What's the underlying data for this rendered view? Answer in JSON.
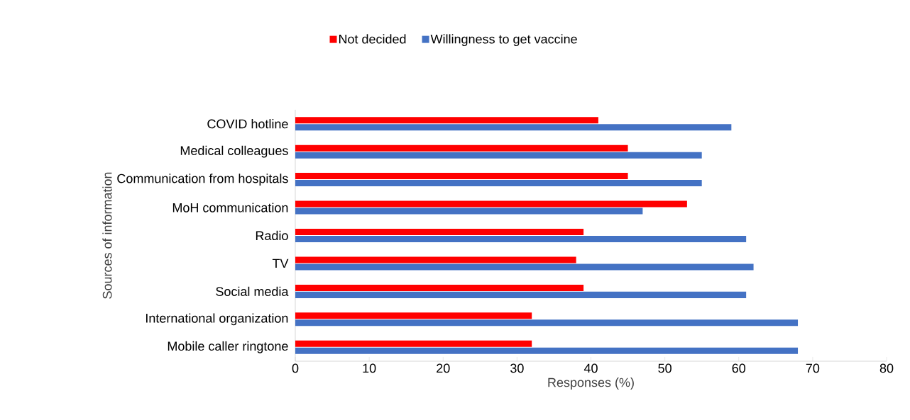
{
  "chart_data": {
    "type": "bar",
    "orientation": "horizontal",
    "xlabel": "Responses (%)",
    "ylabel": "Sources of information",
    "categories": [
      "COVID hotline",
      "Medical colleagues",
      "Communication from hospitals",
      "MoH communication",
      "Radio",
      "TV",
      "Social media",
      "International organization",
      "Mobile caller ringtone"
    ],
    "series": [
      {
        "name": "Not decided",
        "color": "#ff0000",
        "values": [
          41,
          45,
          45,
          53,
          39,
          38,
          39,
          32,
          32
        ]
      },
      {
        "name": "Willingness to get vaccine",
        "color": "#4472c4",
        "values": [
          59,
          55,
          55,
          47,
          61,
          62,
          61,
          68,
          68
        ]
      }
    ],
    "xlim": [
      0,
      80
    ],
    "xticks": [
      0,
      10,
      20,
      30,
      40,
      50,
      60,
      70,
      80
    ],
    "grid": false,
    "legend": "top"
  }
}
